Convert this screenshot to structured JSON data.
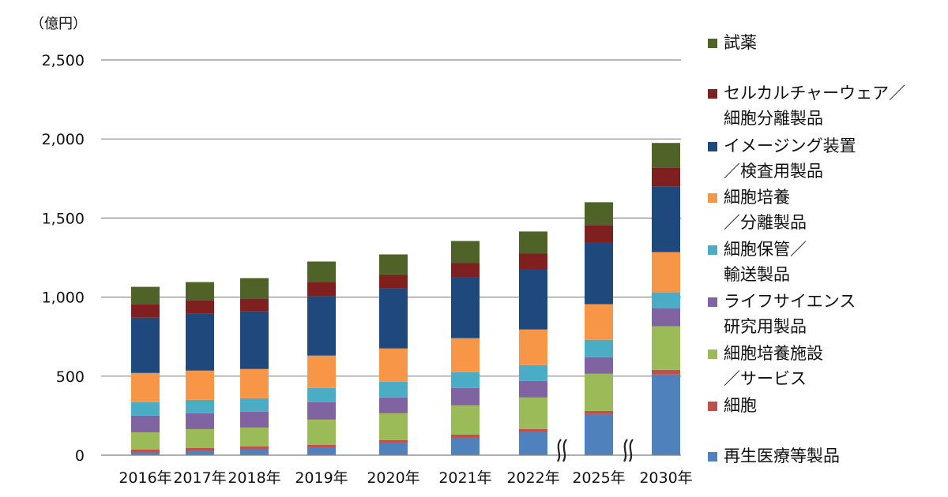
{
  "chart_data": {
    "type": "bar",
    "stacked": true,
    "title": "",
    "ylabel": "（億円）",
    "xlabel": "",
    "ylim": [
      0,
      2500
    ],
    "yticks": [
      0,
      500,
      1000,
      1500,
      2000,
      2500
    ],
    "ytick_labels": [
      "0",
      "500",
      "1,000",
      "1,500",
      "2,000",
      "2,500"
    ],
    "grid": true,
    "legend_position": "right",
    "categories": [
      "2016年",
      "2017年",
      "2018年",
      "2019年",
      "2020年",
      "2021年",
      "2022年",
      "2025年",
      "2030年"
    ],
    "axis_breaks_before": [
      "2025年",
      "2030年"
    ],
    "series": [
      {
        "name": "再生医療等製品",
        "color": "#4F81BD",
        "values": [
          20,
          30,
          40,
          50,
          80,
          110,
          145,
          260,
          510
        ]
      },
      {
        "name": "細胞",
        "color": "#C0504D",
        "values": [
          15,
          15,
          15,
          15,
          15,
          20,
          20,
          20,
          30
        ]
      },
      {
        "name": "細胞培養施設／サービス",
        "color": "#9BBB59",
        "values": [
          110,
          120,
          120,
          160,
          170,
          185,
          200,
          235,
          275
        ]
      },
      {
        "name": "ライフサイエンス研究用製品",
        "color": "#8064A2",
        "values": [
          105,
          100,
          100,
          110,
          100,
          110,
          105,
          105,
          115
        ]
      },
      {
        "name": "細胞保管／輸送製品",
        "color": "#4BACC6",
        "values": [
          85,
          85,
          85,
          90,
          100,
          100,
          100,
          110,
          100
        ]
      },
      {
        "name": "細胞培養／分離製品",
        "color": "#F79646",
        "values": [
          185,
          185,
          185,
          205,
          210,
          215,
          225,
          225,
          255
        ]
      },
      {
        "name": "イメージング装置／検査用製品",
        "color": "#1F497D",
        "values": [
          350,
          360,
          365,
          375,
          380,
          385,
          380,
          390,
          415
        ]
      },
      {
        "name": "セルカルチャーウェア／細胞分離製品",
        "color": "#7F1F1F",
        "values": [
          85,
          85,
          80,
          90,
          85,
          90,
          100,
          110,
          120
        ]
      },
      {
        "name": "試薬",
        "color": "#4F6228",
        "values": [
          110,
          115,
          130,
          130,
          130,
          140,
          140,
          145,
          155
        ]
      }
    ]
  },
  "legend": [
    {
      "line1": "試薬",
      "line2": "",
      "color": "#4F6228"
    },
    {
      "line1": "セルカルチャーウェア／",
      "line2": "細胞分離製品",
      "color": "#7F1F1F"
    },
    {
      "line1": "イメージング装置",
      "line2": "／検査用製品",
      "color": "#1F497D"
    },
    {
      "line1": "細胞培養",
      "line2": "／分離製品",
      "color": "#F79646"
    },
    {
      "line1": "細胞保管／",
      "line2": "輸送製品",
      "color": "#4BACC6"
    },
    {
      "line1": "ライフサイエンス",
      "line2": "研究用製品",
      "color": "#8064A2"
    },
    {
      "line1": "細胞培養施設",
      "line2": "／サービス",
      "color": "#9BBB59"
    },
    {
      "line1": "細胞",
      "line2": "",
      "color": "#C0504D"
    },
    {
      "line1": "再生医療等製品",
      "line2": "",
      "color": "#4F81BD"
    }
  ]
}
